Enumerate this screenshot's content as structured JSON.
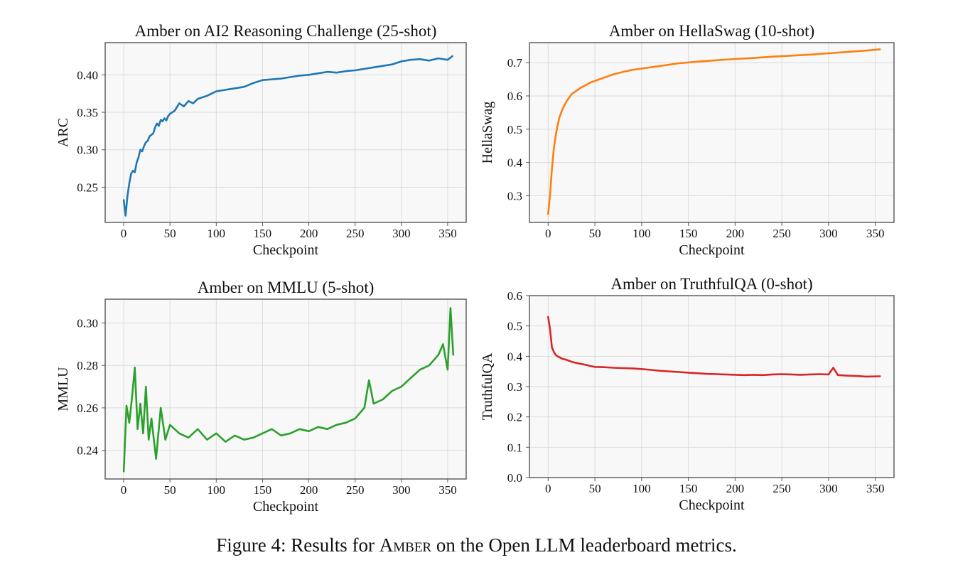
{
  "figure": {
    "caption_prefix": "Figure 4: Results for ",
    "caption_model": "Amber",
    "caption_suffix": " on the Open LLM leaderboard metrics."
  },
  "chart_data": [
    {
      "id": "arc",
      "type": "line",
      "title": "Amber on AI2 Reasoning Challenge (25-shot)",
      "xlabel": "Checkpoint",
      "ylabel": "ARC",
      "xlim": [
        -20,
        370
      ],
      "ylim": [
        0.203,
        0.443
      ],
      "xticks": [
        0,
        50,
        100,
        150,
        200,
        250,
        300,
        350
      ],
      "yticks": [
        0.25,
        0.3,
        0.35,
        0.4
      ],
      "ytick_labels": [
        "0.25",
        "0.30",
        "0.35",
        "0.40"
      ],
      "grid": true,
      "color": "#1f77b4",
      "series": [
        {
          "x": [
            0,
            2,
            4,
            6,
            8,
            10,
            12,
            14,
            16,
            18,
            20,
            22,
            24,
            26,
            28,
            30,
            32,
            34,
            36,
            38,
            40,
            42,
            44,
            46,
            48,
            50,
            55,
            60,
            65,
            70,
            75,
            80,
            85,
            90,
            95,
            100,
            110,
            120,
            130,
            140,
            150,
            160,
            170,
            180,
            190,
            200,
            210,
            220,
            230,
            240,
            250,
            260,
            270,
            280,
            290,
            300,
            310,
            320,
            330,
            340,
            350,
            355
          ],
          "values": [
            0.233,
            0.212,
            0.238,
            0.255,
            0.268,
            0.272,
            0.27,
            0.283,
            0.29,
            0.3,
            0.298,
            0.305,
            0.31,
            0.312,
            0.318,
            0.32,
            0.322,
            0.33,
            0.335,
            0.332,
            0.34,
            0.338,
            0.342,
            0.339,
            0.345,
            0.348,
            0.352,
            0.362,
            0.358,
            0.365,
            0.362,
            0.368,
            0.37,
            0.372,
            0.375,
            0.378,
            0.38,
            0.382,
            0.384,
            0.389,
            0.393,
            0.394,
            0.395,
            0.397,
            0.399,
            0.4,
            0.402,
            0.404,
            0.403,
            0.405,
            0.406,
            0.408,
            0.41,
            0.412,
            0.414,
            0.418,
            0.42,
            0.421,
            0.419,
            0.422,
            0.42,
            0.425
          ]
        }
      ]
    },
    {
      "id": "hellaswag",
      "type": "line",
      "title": "Amber on HellaSwag (10-shot)",
      "xlabel": "Checkpoint",
      "ylabel": "HellaSwag",
      "xlim": [
        -20,
        370
      ],
      "ylim": [
        0.22,
        0.76
      ],
      "xticks": [
        0,
        50,
        100,
        150,
        200,
        250,
        300,
        350
      ],
      "yticks": [
        0.3,
        0.4,
        0.5,
        0.6,
        0.7
      ],
      "ytick_labels": [
        "0.3",
        "0.4",
        "0.5",
        "0.6",
        "0.7"
      ],
      "grid": true,
      "color": "#ff7f0e",
      "series": [
        {
          "x": [
            0,
            2,
            4,
            6,
            8,
            10,
            12,
            14,
            16,
            18,
            20,
            25,
            30,
            35,
            40,
            45,
            50,
            60,
            70,
            80,
            90,
            100,
            120,
            140,
            160,
            180,
            200,
            220,
            240,
            260,
            280,
            300,
            320,
            340,
            355
          ],
          "values": [
            0.245,
            0.3,
            0.38,
            0.44,
            0.48,
            0.51,
            0.535,
            0.55,
            0.565,
            0.575,
            0.585,
            0.605,
            0.615,
            0.625,
            0.632,
            0.64,
            0.645,
            0.655,
            0.665,
            0.672,
            0.678,
            0.682,
            0.69,
            0.698,
            0.703,
            0.707,
            0.711,
            0.714,
            0.718,
            0.721,
            0.724,
            0.728,
            0.732,
            0.736,
            0.74
          ]
        }
      ]
    },
    {
      "id": "mmlu",
      "type": "line",
      "title": "Amber on MMLU (5-shot)",
      "xlabel": "Checkpoint",
      "ylabel": "MMLU",
      "xlim": [
        -20,
        370
      ],
      "ylim": [
        0.2265,
        0.3112
      ],
      "xticks": [
        0,
        50,
        100,
        150,
        200,
        250,
        300,
        350
      ],
      "yticks": [
        0.24,
        0.26,
        0.28,
        0.3
      ],
      "ytick_labels": [
        "0.24",
        "0.26",
        "0.28",
        "0.30"
      ],
      "grid": true,
      "color": "#2ca02c",
      "series": [
        {
          "x": [
            0,
            3,
            6,
            9,
            12,
            15,
            18,
            21,
            24,
            27,
            30,
            35,
            40,
            45,
            50,
            60,
            70,
            80,
            90,
            100,
            110,
            120,
            130,
            140,
            150,
            160,
            170,
            180,
            190,
            200,
            210,
            220,
            230,
            240,
            250,
            260,
            265,
            270,
            280,
            290,
            300,
            310,
            320,
            330,
            340,
            345,
            350,
            353,
            356
          ],
          "values": [
            0.23,
            0.261,
            0.253,
            0.265,
            0.279,
            0.25,
            0.262,
            0.248,
            0.27,
            0.245,
            0.255,
            0.236,
            0.26,
            0.245,
            0.252,
            0.248,
            0.246,
            0.25,
            0.245,
            0.248,
            0.244,
            0.247,
            0.245,
            0.246,
            0.248,
            0.25,
            0.247,
            0.248,
            0.25,
            0.249,
            0.251,
            0.25,
            0.252,
            0.253,
            0.255,
            0.26,
            0.273,
            0.262,
            0.264,
            0.268,
            0.27,
            0.274,
            0.278,
            0.28,
            0.285,
            0.29,
            0.278,
            0.307,
            0.285
          ]
        }
      ]
    },
    {
      "id": "truthfulqa",
      "type": "line",
      "title": "Amber on TruthfulQA (0-shot)",
      "xlabel": "Checkpoint",
      "ylabel": "TruthfulQA",
      "xlim": [
        -20,
        370
      ],
      "ylim": [
        0.0,
        0.6
      ],
      "xticks": [
        0,
        50,
        100,
        150,
        200,
        250,
        300,
        350
      ],
      "yticks": [
        0.0,
        0.1,
        0.2,
        0.3,
        0.4,
        0.5,
        0.6
      ],
      "ytick_labels": [
        "0.0",
        "0.1",
        "0.2",
        "0.3",
        "0.4",
        "0.5",
        "0.6"
      ],
      "grid": true,
      "color": "#d62728",
      "series": [
        {
          "x": [
            0,
            2,
            4,
            6,
            8,
            10,
            15,
            20,
            25,
            30,
            35,
            40,
            45,
            50,
            60,
            70,
            80,
            90,
            100,
            110,
            120,
            130,
            140,
            150,
            160,
            170,
            180,
            190,
            200,
            210,
            220,
            230,
            240,
            250,
            260,
            270,
            280,
            290,
            300,
            305,
            310,
            320,
            330,
            340,
            355
          ],
          "values": [
            0.53,
            0.49,
            0.43,
            0.415,
            0.405,
            0.4,
            0.392,
            0.388,
            0.382,
            0.378,
            0.375,
            0.372,
            0.368,
            0.365,
            0.364,
            0.362,
            0.361,
            0.36,
            0.358,
            0.355,
            0.352,
            0.35,
            0.348,
            0.346,
            0.344,
            0.342,
            0.341,
            0.34,
            0.339,
            0.338,
            0.339,
            0.338,
            0.34,
            0.341,
            0.34,
            0.339,
            0.34,
            0.341,
            0.34,
            0.362,
            0.338,
            0.336,
            0.335,
            0.333,
            0.334
          ]
        }
      ]
    }
  ]
}
